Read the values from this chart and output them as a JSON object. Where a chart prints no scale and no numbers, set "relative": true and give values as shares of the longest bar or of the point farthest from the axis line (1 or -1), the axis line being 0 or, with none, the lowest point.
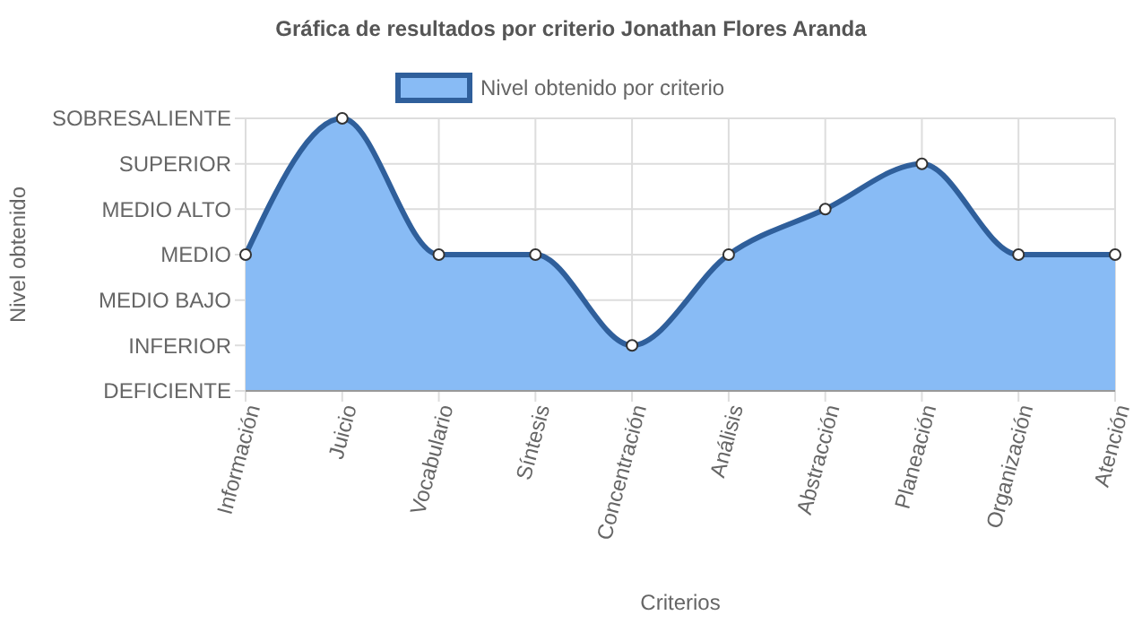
{
  "chart_data": {
    "type": "area",
    "title": "Gráfica de resultados por criterio Jonathan Flores Aranda",
    "xlabel": "Criterios",
    "categories": [
      "Información",
      "Juicio",
      "Vocabulario",
      "Síntesis",
      "Concentración",
      "Análisis",
      "Abstracción",
      "Planeación",
      "Organización",
      "Atención"
    ],
    "series": [
      {
        "name": "Nivel obtenido por criterio",
        "color": "#88bbf5",
        "values": [
          0.5,
          1,
          0.5,
          0.5,
          0.167,
          0.5,
          0.667,
          0.833,
          0.5,
          0.5
        ]
      }
    ],
    "relative": true,
    "annotations": [
      "Nivel obtenido",
      "DEFICIENTE",
      "INFERIOR",
      "MEDIO BAJO",
      "MEDIO",
      "MEDIO ALTO",
      "SUPERIOR",
      "SOBRESALIENTE"
    ],
    "grid": true,
    "legend": "top",
    "marker": "circle"
  }
}
